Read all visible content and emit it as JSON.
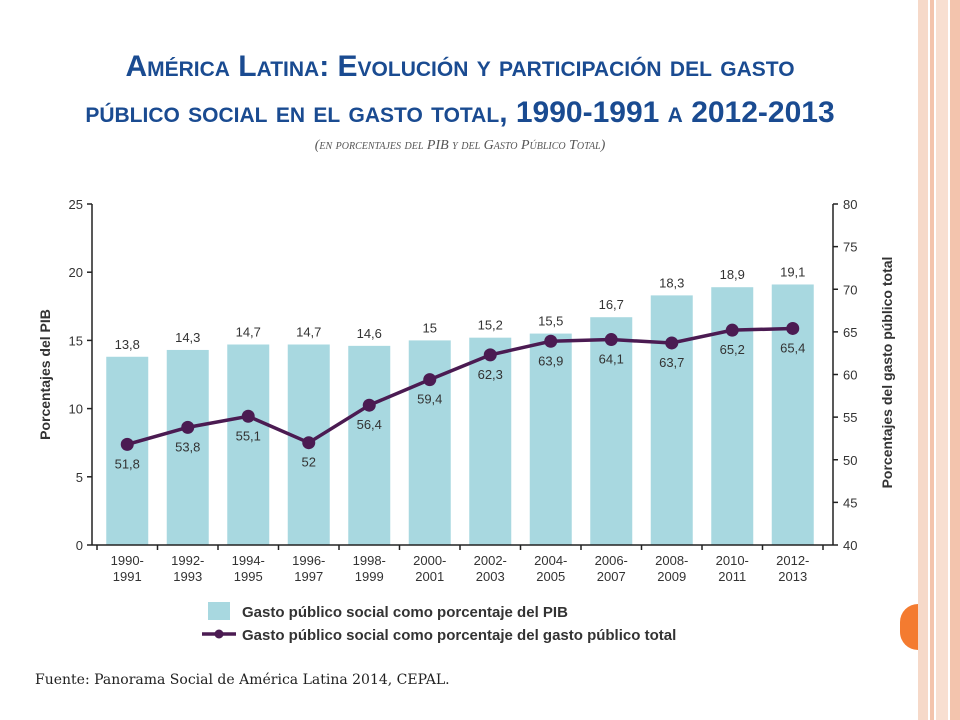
{
  "title": {
    "line1": "América Latina: Evolución y participación del gasto",
    "line2_text": "público social en el gasto total",
    "line2_years_a": "1990-1991",
    "line2_a": "a",
    "line2_years_b": "2012-2013"
  },
  "subtitle": "(en porcentajes del PIB y del Gasto Público Total)",
  "source": "Fuente: Panorama Social de América Latina 2014, CEPAL.",
  "colors": {
    "bar": "#a8d8e0",
    "line": "#4b1b52",
    "title": "#1a4b91",
    "accent": "#f47b30"
  },
  "chart_data": {
    "type": "bar",
    "categories": [
      [
        "1990-",
        "1991"
      ],
      [
        "1992-",
        "1993"
      ],
      [
        "1994-",
        "1995"
      ],
      [
        "1996-",
        "1997"
      ],
      [
        "1998-",
        "1999"
      ],
      [
        "2000-",
        "2001"
      ],
      [
        "2002-",
        "2003"
      ],
      [
        "2004-",
        "2005"
      ],
      [
        "2006-",
        "2007"
      ],
      [
        "2008-",
        "2009"
      ],
      [
        "2010-",
        "2011"
      ],
      [
        "2012-",
        "2013"
      ]
    ],
    "series": [
      {
        "name": "Gasto público social como porcentaje del PIB",
        "type": "bar",
        "axis": "left",
        "values": [
          13.8,
          14.3,
          14.7,
          14.7,
          14.6,
          15,
          15.2,
          15.5,
          16.7,
          18.3,
          18.9,
          19.1
        ],
        "labels": [
          "13,8",
          "14,3",
          "14,7",
          "14,7",
          "14,6",
          "15",
          "15,2",
          "15,5",
          "16,7",
          "18,3",
          "18,9",
          "19,1"
        ]
      },
      {
        "name": "Gasto público social como porcentaje del gasto público total",
        "type": "line",
        "axis": "right",
        "values": [
          51.8,
          53.8,
          55.1,
          52,
          56.4,
          59.4,
          62.3,
          63.9,
          64.1,
          63.7,
          65.2,
          65.4
        ],
        "labels": [
          "51,8",
          "53,8",
          "55,1",
          "52",
          "56,4",
          "59,4",
          "62,3",
          "63,9",
          "64,1",
          "63,7",
          "65,2",
          "65,4"
        ]
      }
    ],
    "ylabel_left": "Porcentajes del PIB",
    "ylabel_right": "Porcentajes del gasto público total",
    "ylim_left": [
      0,
      25
    ],
    "yticks_left": [
      0,
      5,
      10,
      15,
      20,
      25
    ],
    "ylim_right": [
      40,
      80
    ],
    "yticks_right": [
      40,
      45,
      50,
      55,
      60,
      65,
      70,
      75,
      80
    ],
    "grid": false,
    "legend": "bottom"
  }
}
